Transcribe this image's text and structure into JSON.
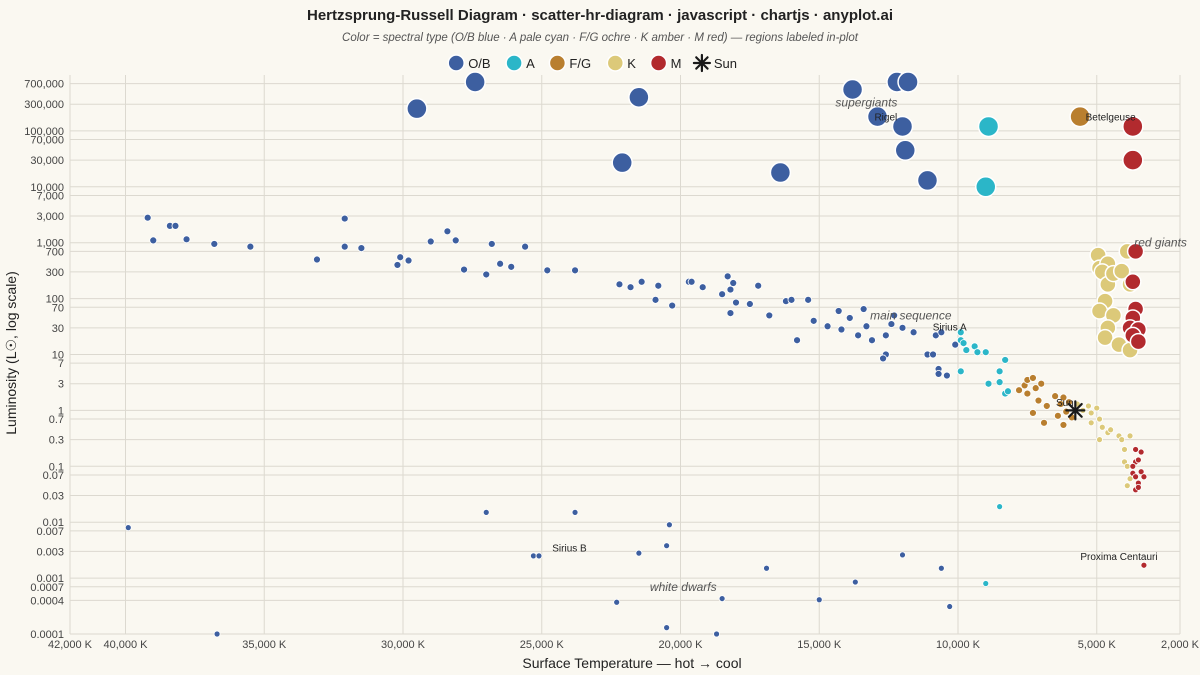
{
  "chart_data": {
    "type": "scatter",
    "title": "Hertzsprung-Russell Diagram · scatter-hr-diagram · javascript · chartjs · anyplot.ai",
    "subtitle": "Color = spectral type (O/B blue · A pale cyan · F/G ochre · K amber · M red) — regions labeled in-plot",
    "xlabel": "Surface Temperature — hot → cool",
    "ylabel": "Luminosity (L☉, log scale)",
    "x_scale": "linear, reversed",
    "y_scale": "log",
    "xlim": [
      42000,
      2000
    ],
    "ylim": [
      0.0001,
      1000000
    ],
    "grid": true,
    "legend_position": "top",
    "x_ticks": [
      "42,000 K",
      "40,000 K",
      "35,000 K",
      "30,000 K",
      "25,000 K",
      "20,000 K",
      "15,000 K",
      "10,000 K",
      "5,000 K",
      "2,000 K"
    ],
    "x_tick_values": [
      42000,
      40000,
      35000,
      30000,
      25000,
      20000,
      15000,
      10000,
      5000,
      2000
    ],
    "y_ticks": [
      "700,000",
      "300,000",
      "100,000",
      "70,000",
      "30,000",
      "10,000",
      "7,000",
      "3,000",
      "1,000",
      "700",
      "300",
      "100",
      "70",
      "30",
      "10",
      "7",
      "3",
      "1",
      "0.7",
      "0.3",
      "0.1",
      "0.07",
      "0.03",
      "0.01",
      "0.007",
      "0.003",
      "0.001",
      "0.0007",
      "0.0004",
      "0.0001"
    ],
    "y_tick_values": [
      700000,
      300000,
      100000,
      70000,
      30000,
      10000,
      7000,
      3000,
      1000,
      700,
      300,
      100,
      70,
      30,
      10,
      7,
      3,
      1,
      0.7,
      0.3,
      0.1,
      0.07,
      0.03,
      0.01,
      0.007,
      0.003,
      0.001,
      0.0007,
      0.0004,
      0.0001
    ],
    "series": [
      {
        "name": "O/B",
        "color": "#3d5fa0",
        "points": [
          [
            29500,
            250000,
            10
          ],
          [
            27400,
            750000,
            10
          ],
          [
            21500,
            400000,
            10
          ],
          [
            22100,
            27000,
            10
          ],
          [
            16400,
            18000,
            10
          ],
          [
            13800,
            550000,
            10
          ],
          [
            12200,
            750000,
            10
          ],
          [
            11800,
            750000,
            10
          ],
          [
            12900,
            180000,
            10
          ],
          [
            12000,
            120000,
            10
          ],
          [
            11900,
            45000,
            10
          ],
          [
            11100,
            13000,
            10
          ],
          [
            39200,
            2800,
            3.5
          ],
          [
            39000,
            1100,
            3.5
          ],
          [
            38400,
            2000,
            3.5
          ],
          [
            38200,
            2000,
            3.5
          ],
          [
            37800,
            1150,
            3.5
          ],
          [
            36800,
            950,
            3.5
          ],
          [
            35500,
            850,
            3.5
          ],
          [
            33100,
            500,
            3.5
          ],
          [
            32100,
            2700,
            3.5
          ],
          [
            32100,
            850,
            3.5
          ],
          [
            31500,
            800,
            3.5
          ],
          [
            30200,
            400,
            3.5
          ],
          [
            30100,
            550,
            3.5
          ],
          [
            29800,
            480,
            3.5
          ],
          [
            29000,
            1050,
            3.5
          ],
          [
            28400,
            1600,
            3.5
          ],
          [
            28100,
            1100,
            3.5
          ],
          [
            27800,
            330,
            3.5
          ],
          [
            27000,
            270,
            3.5
          ],
          [
            26800,
            950,
            3.5
          ],
          [
            26500,
            420,
            3.5
          ],
          [
            26100,
            370,
            3.5
          ],
          [
            25600,
            850,
            3.5
          ],
          [
            24800,
            320,
            3.5
          ],
          [
            23800,
            320,
            3.5
          ],
          [
            22200,
            180,
            3.5
          ],
          [
            21800,
            160,
            3.5
          ],
          [
            21400,
            200,
            3.5
          ],
          [
            20900,
            95,
            3.5
          ],
          [
            20800,
            170,
            3.5
          ],
          [
            20300,
            75,
            3.5
          ],
          [
            19700,
            200,
            3.5
          ],
          [
            19600,
            200,
            3.5
          ],
          [
            19200,
            160,
            3.5
          ],
          [
            18500,
            120,
            3.5
          ],
          [
            18300,
            250,
            3.5
          ],
          [
            18200,
            145,
            3.5
          ],
          [
            18100,
            190,
            3.5
          ],
          [
            18000,
            85,
            3.5
          ],
          [
            18200,
            55,
            3.5
          ],
          [
            17500,
            80,
            3.5
          ],
          [
            17200,
            170,
            3.5
          ],
          [
            16800,
            50,
            3.5
          ],
          [
            16200,
            90,
            3.5
          ],
          [
            16000,
            95,
            3.5
          ],
          [
            15800,
            18,
            3.5
          ],
          [
            15400,
            95,
            3.5
          ],
          [
            15200,
            40,
            3.5
          ],
          [
            14700,
            32,
            3.5
          ],
          [
            14300,
            60,
            3.5
          ],
          [
            14200,
            28,
            3.5
          ],
          [
            13900,
            45,
            3.5
          ],
          [
            13600,
            22,
            3.5
          ],
          [
            13400,
            65,
            3.5
          ],
          [
            13300,
            32,
            3.5
          ],
          [
            13100,
            18,
            3.5
          ],
          [
            12600,
            22,
            3.5
          ],
          [
            12400,
            35,
            3.5
          ],
          [
            12300,
            50,
            3.5
          ],
          [
            12000,
            30,
            3.5
          ],
          [
            11600,
            25,
            3.5
          ],
          [
            12600,
            10,
            3.5
          ],
          [
            12700,
            8.5,
            3.5
          ],
          [
            11100,
            10,
            3.5
          ],
          [
            10900,
            10,
            3.5
          ],
          [
            10800,
            22,
            3.5
          ],
          [
            10600,
            25,
            3.5
          ],
          [
            10100,
            15,
            3.5
          ],
          [
            10700,
            5.5,
            3.5
          ],
          [
            10700,
            4.5,
            3.5
          ],
          [
            10400,
            4.2,
            3.5
          ],
          [
            39900,
            0.008,
            3
          ],
          [
            36700,
            0.0001,
            3
          ],
          [
            27000,
            0.015,
            3
          ],
          [
            25300,
            0.0025,
            3
          ],
          [
            25100,
            0.0025,
            3
          ],
          [
            23800,
            0.015,
            3
          ],
          [
            22300,
            0.00037,
            3
          ],
          [
            21500,
            0.0028,
            3
          ],
          [
            20500,
            0.0038,
            3
          ],
          [
            20400,
            0.009,
            3
          ],
          [
            20500,
            0.00013,
            3
          ],
          [
            18700,
            0.0001,
            3
          ],
          [
            18500,
            0.00043,
            3
          ],
          [
            16900,
            0.0015,
            3
          ],
          [
            15000,
            0.00041,
            3
          ],
          [
            13700,
            0.00085,
            3
          ],
          [
            12000,
            0.0026,
            3
          ],
          [
            10600,
            0.0015,
            3
          ],
          [
            10300,
            0.00031,
            3
          ]
        ]
      },
      {
        "name": "A",
        "color": "#2bb6c8",
        "points": [
          [
            8900,
            120000,
            10
          ],
          [
            9000,
            10000,
            10
          ],
          [
            9900,
            25,
            3.5
          ],
          [
            9900,
            18,
            3.5
          ],
          [
            9800,
            16,
            3.5
          ],
          [
            9700,
            12,
            3.5
          ],
          [
            9400,
            14,
            3.5
          ],
          [
            9300,
            11,
            3.5
          ],
          [
            9000,
            11,
            3.5
          ],
          [
            8300,
            8,
            3.5
          ],
          [
            9900,
            5,
            3.5
          ],
          [
            8500,
            5,
            3.5
          ],
          [
            8900,
            3,
            3.5
          ],
          [
            8500,
            3.2,
            3.5
          ],
          [
            8300,
            2,
            3.5
          ],
          [
            8200,
            2.2,
            3.5
          ],
          [
            8500,
            0.019,
            3
          ],
          [
            9000,
            0.0008,
            3
          ]
        ]
      },
      {
        "name": "F/G",
        "color": "#b97f2f",
        "points": [
          [
            5600,
            180000,
            10
          ],
          [
            7800,
            2.3,
            3.5
          ],
          [
            7600,
            2.8,
            3.5
          ],
          [
            7500,
            3.5,
            3.5
          ],
          [
            7300,
            3.8,
            3.5
          ],
          [
            7500,
            2,
            3.5
          ],
          [
            7200,
            2.5,
            3.5
          ],
          [
            7100,
            1.5,
            3.5
          ],
          [
            7000,
            3,
            3.5
          ],
          [
            6800,
            1.2,
            3.5
          ],
          [
            7300,
            0.9,
            3.5
          ],
          [
            6900,
            0.6,
            3.5
          ],
          [
            6500,
            1.8,
            3.5
          ],
          [
            6400,
            0.8,
            3.5
          ],
          [
            6300,
            1.3,
            3.5
          ],
          [
            6200,
            1.7,
            3.5
          ],
          [
            6100,
            0.95,
            3.5
          ],
          [
            6000,
            1.4,
            3.5
          ],
          [
            5900,
            0.75,
            3.5
          ],
          [
            6200,
            0.55,
            3.5
          ]
        ]
      },
      {
        "name": "K",
        "color": "#dcc979",
        "points": [
          [
            4950,
            600,
            8
          ],
          [
            4900,
            350,
            8
          ],
          [
            4600,
            420,
            8
          ],
          [
            4800,
            300,
            8
          ],
          [
            4600,
            180,
            8
          ],
          [
            4400,
            280,
            8
          ],
          [
            4100,
            310,
            8
          ],
          [
            3800,
            180,
            8
          ],
          [
            4700,
            90,
            8
          ],
          [
            4900,
            60,
            8
          ],
          [
            4400,
            50,
            8
          ],
          [
            4600,
            30,
            8
          ],
          [
            4700,
            20,
            8
          ],
          [
            4200,
            15,
            8
          ],
          [
            3800,
            12,
            8
          ],
          [
            3900,
            700,
            8
          ],
          [
            5700,
            1.3,
            3
          ],
          [
            5500,
            1,
            3
          ],
          [
            5300,
            1.2,
            3
          ],
          [
            5200,
            0.6,
            3
          ],
          [
            5200,
            0.9,
            3
          ],
          [
            5000,
            1.1,
            3
          ],
          [
            4900,
            0.7,
            3
          ],
          [
            4800,
            0.5,
            3
          ],
          [
            4600,
            0.4,
            3
          ],
          [
            4500,
            0.45,
            3
          ],
          [
            4200,
            0.35,
            3
          ],
          [
            4100,
            0.3,
            3
          ],
          [
            4000,
            0.2,
            3
          ],
          [
            4000,
            0.12,
            3
          ],
          [
            3900,
            0.1,
            3
          ],
          [
            4900,
            0.3,
            3
          ],
          [
            3800,
            0.06,
            3
          ],
          [
            3900,
            0.045,
            3
          ],
          [
            3800,
            0.35,
            3
          ]
        ]
      },
      {
        "name": "M",
        "color": "#b22a2e",
        "points": [
          [
            3700,
            120000,
            10
          ],
          [
            3700,
            30000,
            10
          ],
          [
            3600,
            700,
            8
          ],
          [
            3700,
            200,
            8
          ],
          [
            3600,
            65,
            8
          ],
          [
            3700,
            45,
            8
          ],
          [
            3800,
            30,
            8
          ],
          [
            3500,
            28,
            8
          ],
          [
            3700,
            22,
            8
          ],
          [
            3500,
            17,
            8
          ],
          [
            3600,
            0.2,
            3
          ],
          [
            3400,
            0.18,
            3
          ],
          [
            3600,
            0.12,
            3
          ],
          [
            3700,
            0.1,
            3
          ],
          [
            3500,
            0.13,
            3
          ],
          [
            3400,
            0.08,
            3
          ],
          [
            3700,
            0.075,
            3
          ],
          [
            3600,
            0.065,
            3
          ],
          [
            3300,
            0.065,
            3
          ],
          [
            3500,
            0.05,
            3
          ],
          [
            3600,
            0.038,
            3
          ],
          [
            3500,
            0.042,
            3
          ],
          [
            3300,
            0.0017,
            3
          ]
        ]
      },
      {
        "name": "Sun",
        "color": "#1a1a1a",
        "points": [
          [
            5772,
            1,
            9
          ]
        ]
      }
    ],
    "regions": [
      {
        "text": "supergiants",
        "x": 13300,
        "y": 320000
      },
      {
        "text": "main sequence",
        "x": 11700,
        "y": 50
      },
      {
        "text": "red giants",
        "x": 2700,
        "y": 1000
      },
      {
        "text": "white dwarfs",
        "x": 19900,
        "y": 0.0007
      }
    ],
    "annotations": [
      {
        "text": "Rigel",
        "x": 12600,
        "y": 180000
      },
      {
        "text": "Betelgeuse",
        "x": 4500,
        "y": 180000
      },
      {
        "text": "Sirius A",
        "x": 10300,
        "y": 32
      },
      {
        "text": "Sun",
        "x": 6150,
        "y": 1.4
      },
      {
        "text": "Sirius B",
        "x": 24000,
        "y": 0.0035
      },
      {
        "text": "Proxima Centauri",
        "x": 4200,
        "y": 0.0025
      }
    ]
  }
}
